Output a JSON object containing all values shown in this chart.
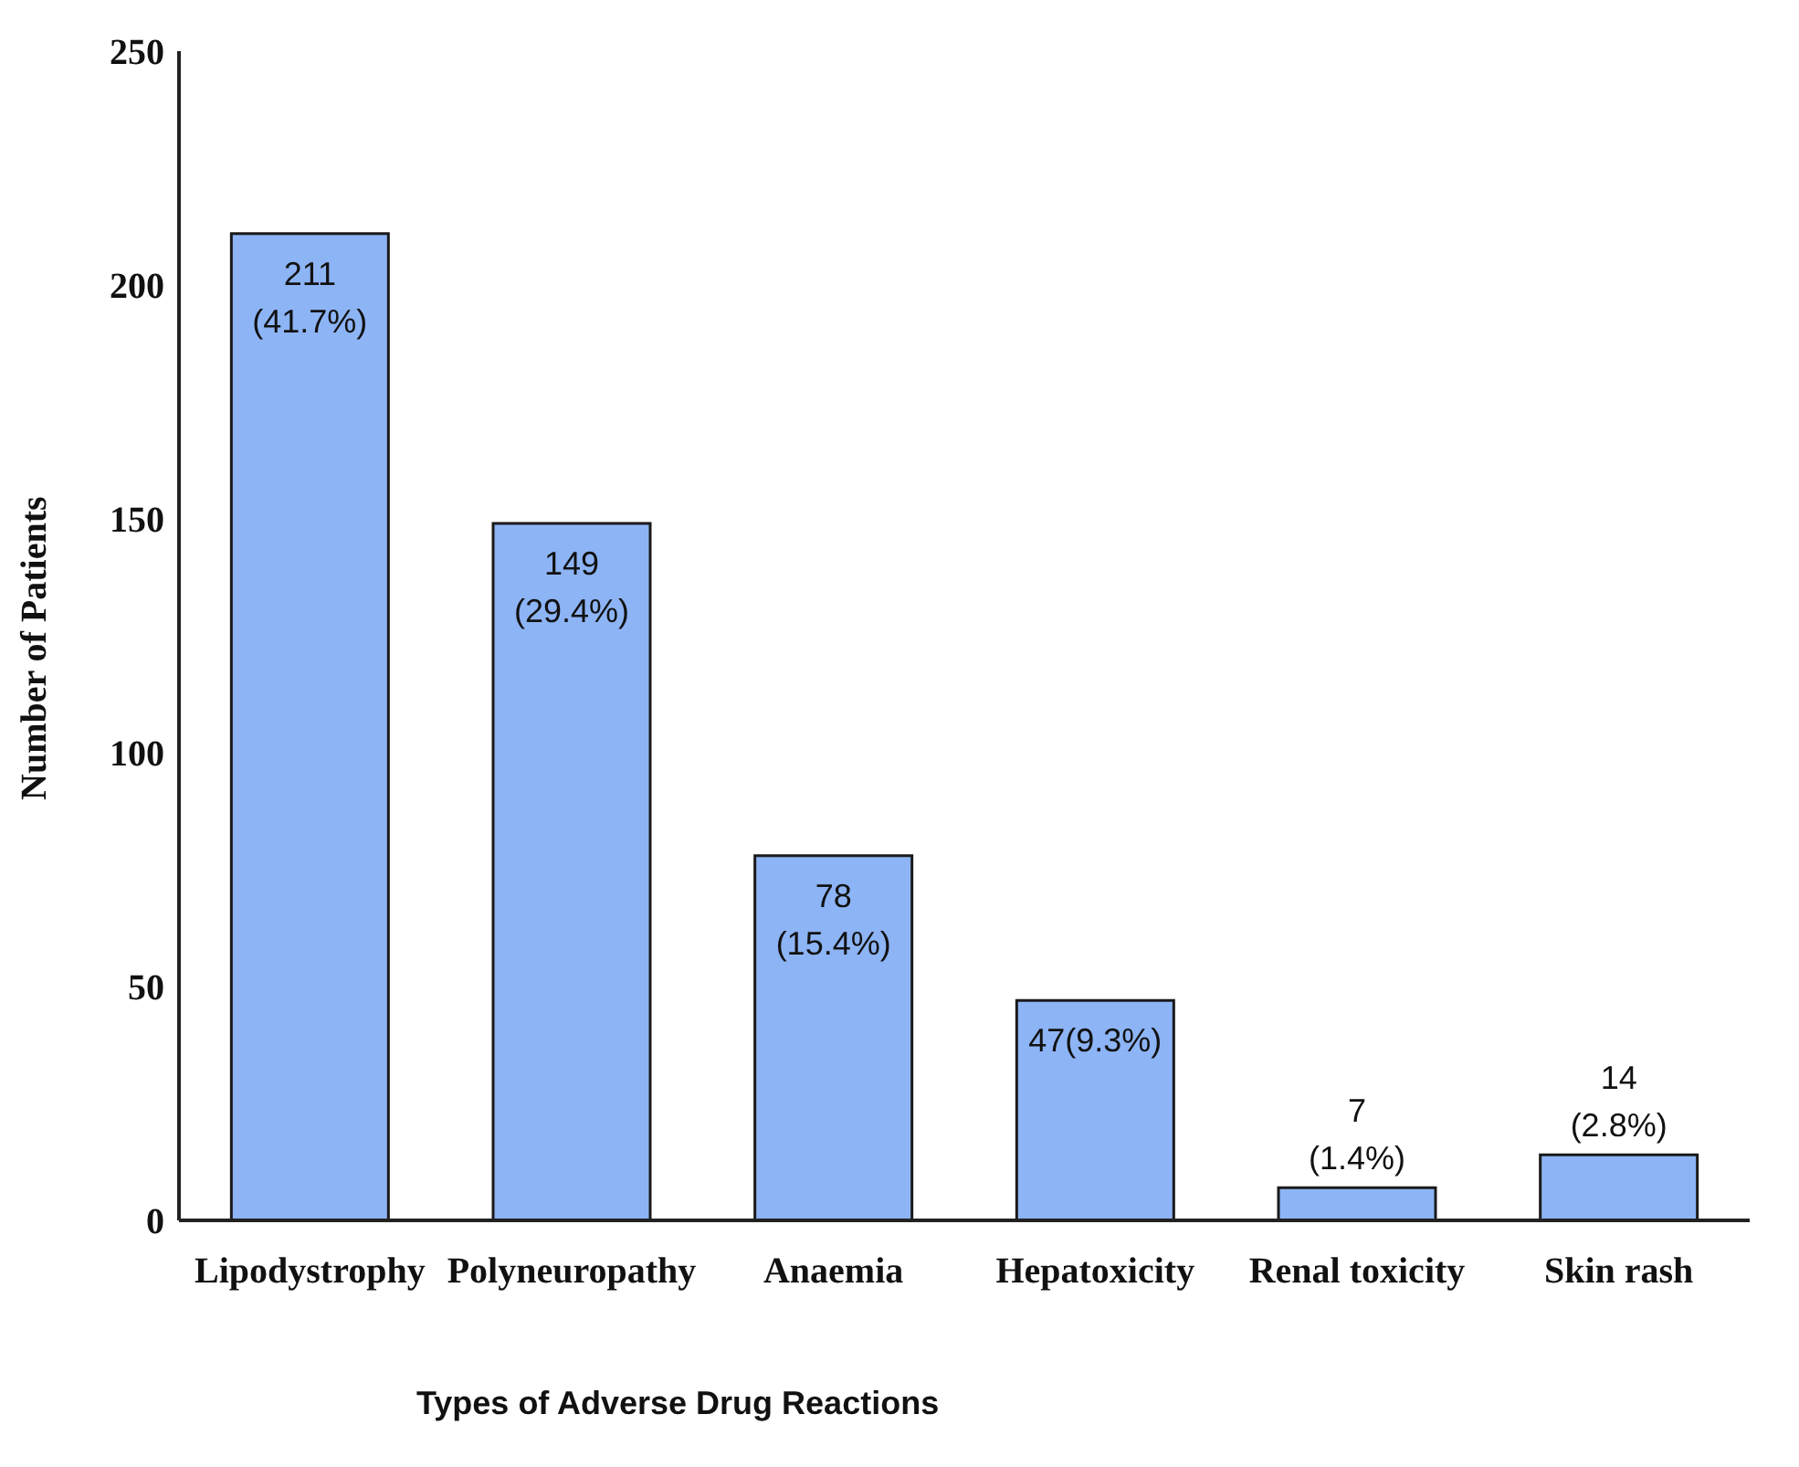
{
  "chart_data": {
    "type": "bar",
    "xlabel": "Types of Adverse Drug Reactions",
    "ylabel": "Number of Patients",
    "categories": [
      "Lipodystrophy",
      "Polyneuropathy",
      "Anaemia",
      "Hepatoxicity",
      "Renal toxicity",
      "Skin rash"
    ],
    "values": [
      211,
      149,
      78,
      47,
      7,
      14
    ],
    "value_labels": [
      "211 (41.7%)",
      "149 (29.4%)",
      "78 (15.4%)",
      "47(9.3%)",
      "7 (1.4%)",
      "14 (2.8%)"
    ],
    "color": "#8db4f5",
    "ylim": [
      0,
      250
    ],
    "yticks": [
      0,
      50,
      100,
      150,
      200,
      250
    ],
    "grid": false,
    "legend": false
  }
}
